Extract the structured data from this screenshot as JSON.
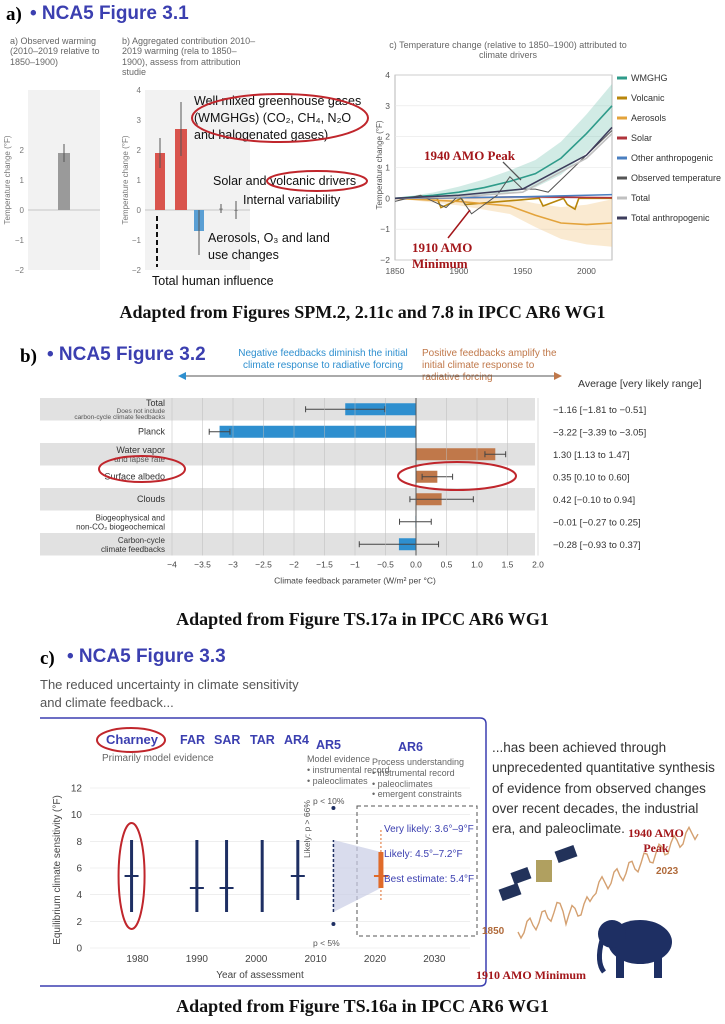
{
  "panel_a": {
    "letter": "a)",
    "fig_title": "• NCA5 Figure 3.1",
    "sub_a_title": "a) Observed warming (2010–2019 relative to 1850–1900)",
    "sub_b_title": "b) Aggregated contribution 2010–2019 warming (rela to 1850–1900), assess from attribution studie",
    "sub_c_title": "c) Temperature change (relative to 1850–1900) attributed to climate drivers",
    "annotations": {
      "wmghg": "Well mixed greenhouse gases (WMGHGs) (CO₂, CH₄, N₂O and halogenated gases)",
      "solar_volcanic": "Solar and volcanic drivers",
      "internal": "Internal variability",
      "aerosols": "Aerosols, O₃ and land use changes",
      "total_human": "Total human influence",
      "amo_peak": "1940 AMO Peak",
      "amo_min_1": "1910 AMO",
      "amo_min_2": "Minimum"
    },
    "caption": "Adapted from Figures SPM.2, 2.11c and 7.8 in IPCC AR6 WG1"
  },
  "panel_b": {
    "letter": "b)",
    "fig_title": "• NCA5 Figure 3.2",
    "neg_text": "Negative feedbacks diminish the initial climate response to radiative forcing",
    "pos_text": "Positive feedbacks amplify the initial climate response to radiative forcing",
    "avg_header": "Average [very likely range]",
    "caption": "Adapted from Figure TS.17a in IPCC AR6 WG1"
  },
  "panel_c": {
    "letter": "c)",
    "fig_title": "• NCA5 Figure 3.3",
    "intro": "The reduced uncertainty in climate sensitivity and climate feedback...",
    "right_text": "...has been achieved through unprecedented quantitative synthesis of evidence from observed changes over recent decades, the industrial era, and paleoclimate.",
    "assess_labels": [
      "Charney",
      "FAR",
      "SAR",
      "TAR",
      "AR4",
      "AR5"
    ],
    "primarily": "Primarily model evidence",
    "ar5_evidence": "Model evidence\n• instrumental record\n• paleoclimates",
    "ar6_title": "AR6",
    "ar6_evidence": "Process understanding\n• instrumental record\n• paleoclimates\n• emergent constraints",
    "p_lt_10": "p < 10%",
    "p_lt_5": "p < 5%",
    "likely": "Likely: p > 66%",
    "very_likely": "Very likely: 3.6°–9°F",
    "likely_range": "Likely: 4.5°–7.2°F",
    "best": "Best estimate: 5.4°F",
    "amo_peak": "1940 AMO Peak",
    "amo_min": "1910 AMO Minimum",
    "y1850": "1850",
    "y2023": "2023",
    "caption": "Adapted from Figure TS.16a in IPCC AR6 WG1"
  },
  "chart_data": [
    {
      "id": "observed",
      "type": "bar",
      "categories": [
        ""
      ],
      "values": [
        1.9
      ],
      "ranges": [
        [
          1.6,
          2.2
        ]
      ],
      "ylabel": "Temperature change (°F)",
      "yticks": [
        -2,
        -1,
        0,
        1,
        2
      ],
      "ylim": [
        -2,
        4
      ],
      "colors": [
        "#9a9a9a"
      ]
    },
    {
      "id": "attribution",
      "type": "bar",
      "categories": [
        "Total human influence",
        "WMGHGs",
        "Aerosols",
        "Solar and volcanic",
        "Internal variability"
      ],
      "values": [
        1.9,
        2.7,
        -0.7,
        0.05,
        0.0
      ],
      "ranges": [
        [
          1.4,
          2.4
        ],
        [
          1.8,
          3.6
        ],
        [
          -1.5,
          0.0
        ],
        [
          -0.1,
          0.2
        ],
        [
          -0.3,
          0.3
        ]
      ],
      "ylabel": "Temperature change (°F)",
      "yticks": [
        -2,
        -1,
        0,
        1,
        2,
        3,
        4
      ],
      "ylim": [
        -2,
        4
      ],
      "colors": [
        "#d9544d",
        "#d9544d",
        "#5a9fd4",
        "#aaaaaa",
        "#aaaaaa"
      ]
    },
    {
      "id": "timeseries",
      "type": "line",
      "xlim": [
        1850,
        2020
      ],
      "xticks": [
        1850,
        1900,
        1950,
        2000
      ],
      "ylim": [
        -2,
        4
      ],
      "yticks": [
        -2,
        -1,
        0,
        1,
        2,
        3,
        4
      ],
      "ylabel": "Temperature change (°F)",
      "series": [
        {
          "name": "WMGHG",
          "color": "#2e9b8a",
          "x": [
            1850,
            1880,
            1900,
            1920,
            1940,
            1960,
            1980,
            2000,
            2020
          ],
          "y": [
            0,
            0.1,
            0.2,
            0.35,
            0.55,
            0.8,
            1.3,
            2.1,
            3.0
          ]
        },
        {
          "name": "Volcanic",
          "color": "#b8860b",
          "x": [
            1850,
            1883,
            1886,
            1902,
            1905,
            1963,
            1966,
            1982,
            1985,
            1991,
            1994,
            2020
          ],
          "y": [
            0,
            0,
            -0.3,
            0,
            -0.2,
            0,
            -0.25,
            0,
            -0.2,
            -0.35,
            0,
            0
          ]
        },
        {
          "name": "Aerosols",
          "color": "#e3a33b",
          "x": [
            1850,
            1900,
            1940,
            1960,
            1980,
            2000,
            2020
          ],
          "y": [
            0,
            -0.1,
            -0.25,
            -0.55,
            -0.8,
            -0.85,
            -0.8
          ]
        },
        {
          "name": "Solar",
          "color": "#b0343c",
          "x": [
            1850,
            1900,
            1950,
            2000,
            2020
          ],
          "y": [
            0,
            0.02,
            0.05,
            0.03,
            0.02
          ]
        },
        {
          "name": "Other anthropogenic",
          "color": "#4a7fc0",
          "x": [
            1850,
            1900,
            1950,
            2000,
            2020
          ],
          "y": [
            0,
            0.02,
            0.05,
            0.1,
            0.12
          ]
        },
        {
          "name": "Observed temperature",
          "color": "#555555",
          "x": [
            1850,
            1870,
            1880,
            1890,
            1900,
            1910,
            1920,
            1930,
            1940,
            1950,
            1960,
            1970,
            1980,
            1990,
            2000,
            2010,
            2020
          ],
          "y": [
            -0.1,
            0.1,
            -0.1,
            -0.3,
            0.1,
            -0.5,
            -0.2,
            0.1,
            0.7,
            0.3,
            0.3,
            0.2,
            0.6,
            1.0,
            1.4,
            1.8,
            2.2
          ]
        },
        {
          "name": "Total",
          "color": "#c0c0c0",
          "x": [
            1850,
            1900,
            1950,
            2000,
            2020
          ],
          "y": [
            0,
            0.05,
            0.2,
            1.3,
            2.1
          ]
        },
        {
          "name": "Total anthropogenic",
          "color": "#3d3d5c",
          "x": [
            1850,
            1900,
            1950,
            2000,
            2020
          ],
          "y": [
            0,
            0.1,
            0.3,
            1.4,
            2.3
          ]
        }
      ]
    },
    {
      "id": "feedbacks",
      "type": "bar",
      "orientation": "horizontal",
      "xlabel": "Climate feedback parameter (W/m² per °C)",
      "xlim": [
        -4.0,
        2.0
      ],
      "xticks": [
        -4.0,
        -3.5,
        -3.0,
        -2.5,
        -2.0,
        -1.5,
        -1.0,
        -0.5,
        0.0,
        0.5,
        1.0,
        1.5,
        2.0
      ],
      "categories": [
        "Total",
        "Planck",
        "Water vapor and lapse rate",
        "Surface albedo",
        "Clouds",
        "Biogeophysical and non-CO₂ biogeochemical",
        "Carbon-cycle climate feedbacks"
      ],
      "category_notes": [
        "Does not include carbon-cycle climate feedbacks",
        "",
        "",
        "",
        "",
        "",
        ""
      ],
      "values": [
        -1.16,
        -3.22,
        1.3,
        0.35,
        0.42,
        -0.01,
        -0.28
      ],
      "ranges": [
        [
          -1.81,
          -0.51
        ],
        [
          -3.39,
          -3.05
        ],
        [
          1.13,
          1.47
        ],
        [
          0.1,
          0.6
        ],
        [
          -0.1,
          0.94
        ],
        [
          -0.27,
          0.25
        ],
        [
          -0.93,
          0.37
        ]
      ],
      "range_labels": [
        "−1.16 [−1.81 to −0.51]",
        "−3.22 [−3.39 to −3.05]",
        "1.30 [1.13 to 1.47]",
        "0.35 [0.10 to 0.60]",
        "0.42 [−0.10 to 0.94]",
        "−0.01 [−0.27 to 0.25]",
        "−0.28 [−0.93 to 0.37]"
      ],
      "colors": [
        "#2e8fcf",
        "#2e8fcf",
        "#c0784a",
        "#c0784a",
        "#c0784a",
        "#2e8fcf",
        "#2e8fcf"
      ]
    },
    {
      "id": "ecs",
      "type": "line",
      "ylabel": "Equilibrium climate sensitivity (°F)",
      "xlabel": "Year of assessment",
      "xlim": [
        1972,
        2036
      ],
      "xticks": [
        1980,
        1990,
        2000,
        2010,
        2020,
        2030
      ],
      "ylim": [
        0,
        12
      ],
      "yticks": [
        0,
        2,
        4,
        6,
        8,
        10,
        12
      ],
      "assessments": [
        {
          "name": "Charney",
          "year": 1979,
          "low": 2.7,
          "high": 8.1,
          "best": 5.4
        },
        {
          "name": "FAR",
          "year": 1990,
          "low": 2.7,
          "high": 8.1,
          "best": 4.5
        },
        {
          "name": "SAR",
          "year": 1995,
          "low": 2.7,
          "high": 8.1,
          "best": 4.5
        },
        {
          "name": "TAR",
          "year": 2001,
          "low": 2.7,
          "high": 8.1,
          "best": null
        },
        {
          "name": "AR4",
          "year": 2007,
          "low": 3.6,
          "high": 8.1,
          "best": 5.4
        },
        {
          "name": "AR5",
          "year": 2013,
          "low": 2.7,
          "high": 8.1,
          "best": null
        },
        {
          "name": "AR6",
          "year": 2021,
          "low": 4.5,
          "high": 7.2,
          "best": 5.4,
          "very_likely": [
            3.6,
            9.0
          ]
        }
      ]
    }
  ]
}
